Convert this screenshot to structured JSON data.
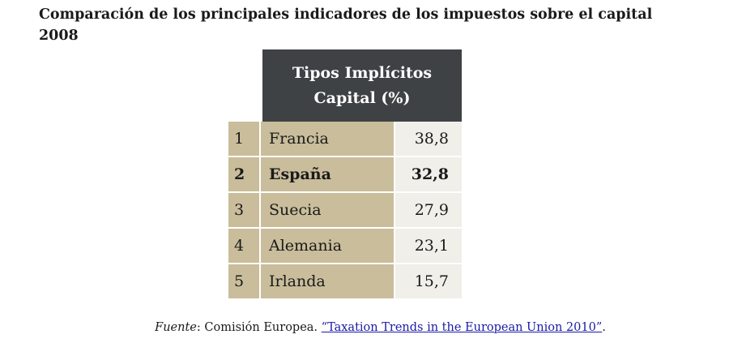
{
  "title": {
    "line1": "Comparación de los principales indicadores de los impuestos sobre el capital",
    "line2": "2008"
  },
  "table": {
    "header": {
      "line1": "Tipos Implícitos",
      "line2": "Capital (%)"
    },
    "rows": [
      {
        "rank": "1",
        "country": "Francia",
        "value": "38,8"
      },
      {
        "rank": "2",
        "country": "España",
        "value": "32,8"
      },
      {
        "rank": "3",
        "country": "Suecia",
        "value": "27,9"
      },
      {
        "rank": "4",
        "country": "Alemania",
        "value": "23,1"
      },
      {
        "rank": "5",
        "country": "Irlanda",
        "value": "15,7"
      }
    ]
  },
  "source": {
    "label": "Fuente",
    "separator": ": ",
    "org": "Comisión Europea. ",
    "link_text": "“Taxation Trends in the European Union 2010”",
    "end": "."
  },
  "colors": {
    "header_bg": "#3f4244",
    "label_bg": "#c9bd9b",
    "value_bg": "#f1efe9",
    "link": "#1a1aa6"
  }
}
